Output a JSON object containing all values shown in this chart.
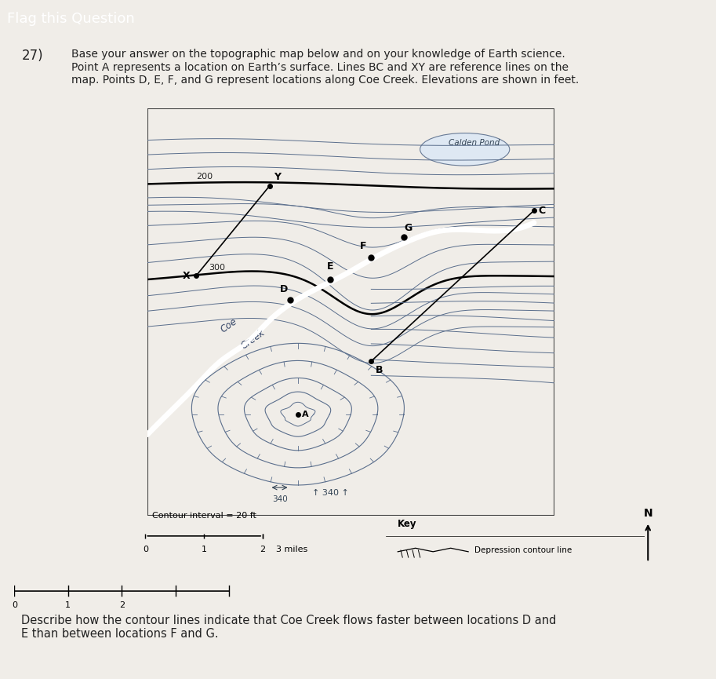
{
  "title_bar": "Flag this Question",
  "title_bar_bg": "#2c2c2c",
  "title_bar_fg": "#ffffff",
  "question_number": "27)",
  "question_text": "Base your answer on the topographic map below and on your knowledge of Earth science.\nPoint A represents a location on Earth’s surface. Lines BC and XY are reference lines on the\nmap. Points D, E, F, and G represent locations along Coe Creek. Elevations are shown in feet.",
  "map_bg": "#c8d5e8",
  "map_border": "#333333",
  "contour_color": "#5a6e8c",
  "contour_bold_color": "#000000",
  "pond_color": "#dde8f5",
  "creek_color": "#ffffff",
  "page_bg": "#f0ede8",
  "label_200": "200",
  "label_300": "300",
  "label_340": "340",
  "contour_interval_text": "Contour interval = 20 ft",
  "key_title": "Key",
  "key_depression": "Depression contour line",
  "scale_text": "3 miles",
  "north_arrow": true,
  "describe_text": "Describe how the contour lines indicate that Coe Creek flows faster between locations D and\nE than between locations F and G.",
  "bottom_bg": "#f0ede8"
}
